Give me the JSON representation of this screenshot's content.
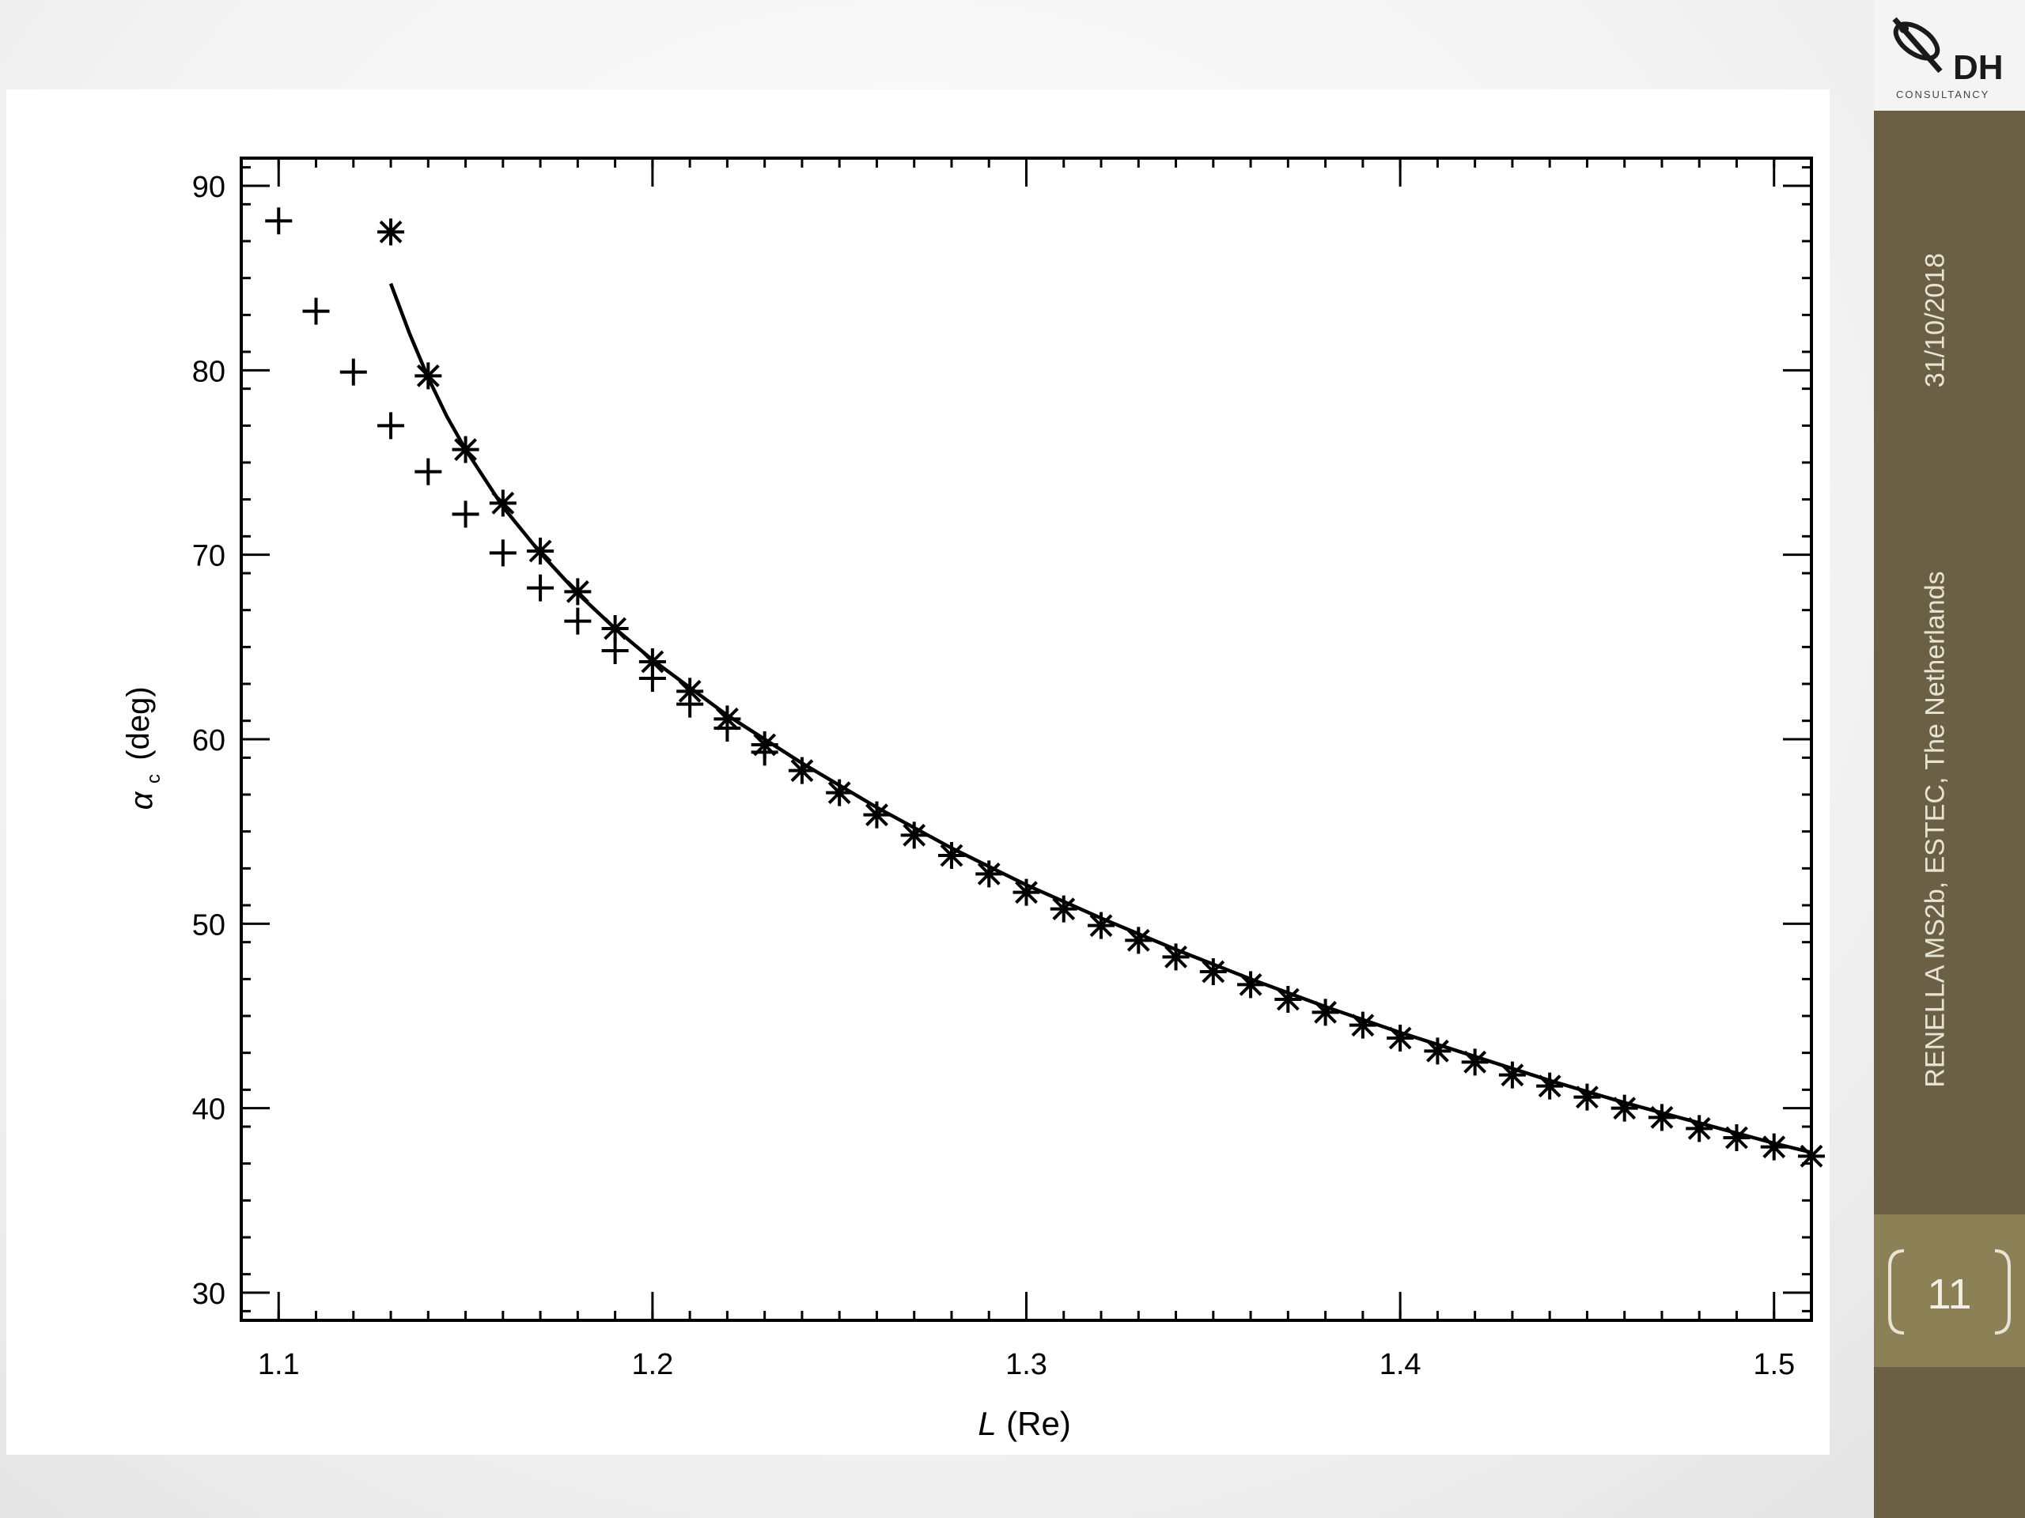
{
  "slide": {
    "date": "31/10/2018",
    "footer": "RENELLA MS2b, ESTEC, The Netherlands",
    "page_number": "11",
    "logo_text": "DH",
    "logo_subtext": "CONSULTANCY",
    "colors": {
      "sidebar": "#6b6046",
      "page_box": "#8c8156",
      "sidebar_text": "#e8e4d4"
    }
  },
  "chart_data": {
    "type": "scatter",
    "title": "",
    "xlabel": "L (Re)",
    "ylabel": "α_c (deg)",
    "xlim": [
      1.09,
      1.51
    ],
    "ylim": [
      28.5,
      91.5
    ],
    "xticks": [
      1.1,
      1.2,
      1.3,
      1.4,
      1.5
    ],
    "xtick_labels": [
      "1.1",
      "1.2",
      "1.3",
      "1.4",
      "1.5"
    ],
    "yticks": [
      30,
      40,
      50,
      60,
      70,
      80,
      90
    ],
    "ytick_labels": [
      "30",
      "40",
      "50",
      "60",
      "70",
      "80",
      "90"
    ],
    "grid": false,
    "series": [
      {
        "marker": "plus",
        "x": [
          1.1,
          1.11,
          1.12,
          1.13,
          1.14,
          1.15,
          1.16,
          1.17,
          1.18,
          1.19,
          1.2,
          1.21,
          1.22,
          1.23
        ],
        "y": [
          88.1,
          83.2,
          79.9,
          77.0,
          74.5,
          72.2,
          70.1,
          68.2,
          66.4,
          64.8,
          63.3,
          61.9,
          60.6,
          59.3
        ]
      },
      {
        "marker": "asterisk",
        "x": [
          1.13,
          1.14,
          1.15,
          1.16,
          1.17,
          1.18,
          1.19,
          1.2,
          1.21,
          1.22,
          1.23,
          1.24,
          1.25,
          1.26,
          1.27,
          1.28,
          1.29,
          1.3,
          1.31,
          1.32,
          1.33,
          1.34,
          1.35,
          1.36,
          1.37,
          1.38,
          1.39,
          1.4,
          1.41,
          1.42,
          1.43,
          1.44,
          1.45,
          1.46,
          1.47,
          1.48,
          1.49,
          1.5,
          1.51
        ],
        "y": [
          87.5,
          79.7,
          75.7,
          72.8,
          70.2,
          68.0,
          66.0,
          64.2,
          62.6,
          61.1,
          59.7,
          58.3,
          57.1,
          55.9,
          54.8,
          53.7,
          52.7,
          51.7,
          50.8,
          49.9,
          49.1,
          48.2,
          47.4,
          46.7,
          45.9,
          45.2,
          44.5,
          43.8,
          43.1,
          42.5,
          41.8,
          41.2,
          40.6,
          40.0,
          39.5,
          38.9,
          38.4,
          37.9,
          37.4
        ]
      },
      {
        "marker": "line",
        "x": [
          1.13,
          1.135,
          1.14,
          1.145,
          1.15,
          1.16,
          1.17,
          1.18,
          1.19,
          1.2,
          1.22,
          1.24,
          1.26,
          1.28,
          1.3,
          1.32,
          1.34,
          1.36,
          1.38,
          1.4,
          1.42,
          1.44,
          1.46,
          1.48,
          1.5,
          1.51
        ],
        "y": [
          84.7,
          82.0,
          79.6,
          77.5,
          75.7,
          72.6,
          70.1,
          67.9,
          66.0,
          64.3,
          61.3,
          58.7,
          56.3,
          54.1,
          52.1,
          50.3,
          48.6,
          47.0,
          45.5,
          44.1,
          42.8,
          41.5,
          40.3,
          39.2,
          38.1,
          37.6
        ]
      }
    ]
  }
}
